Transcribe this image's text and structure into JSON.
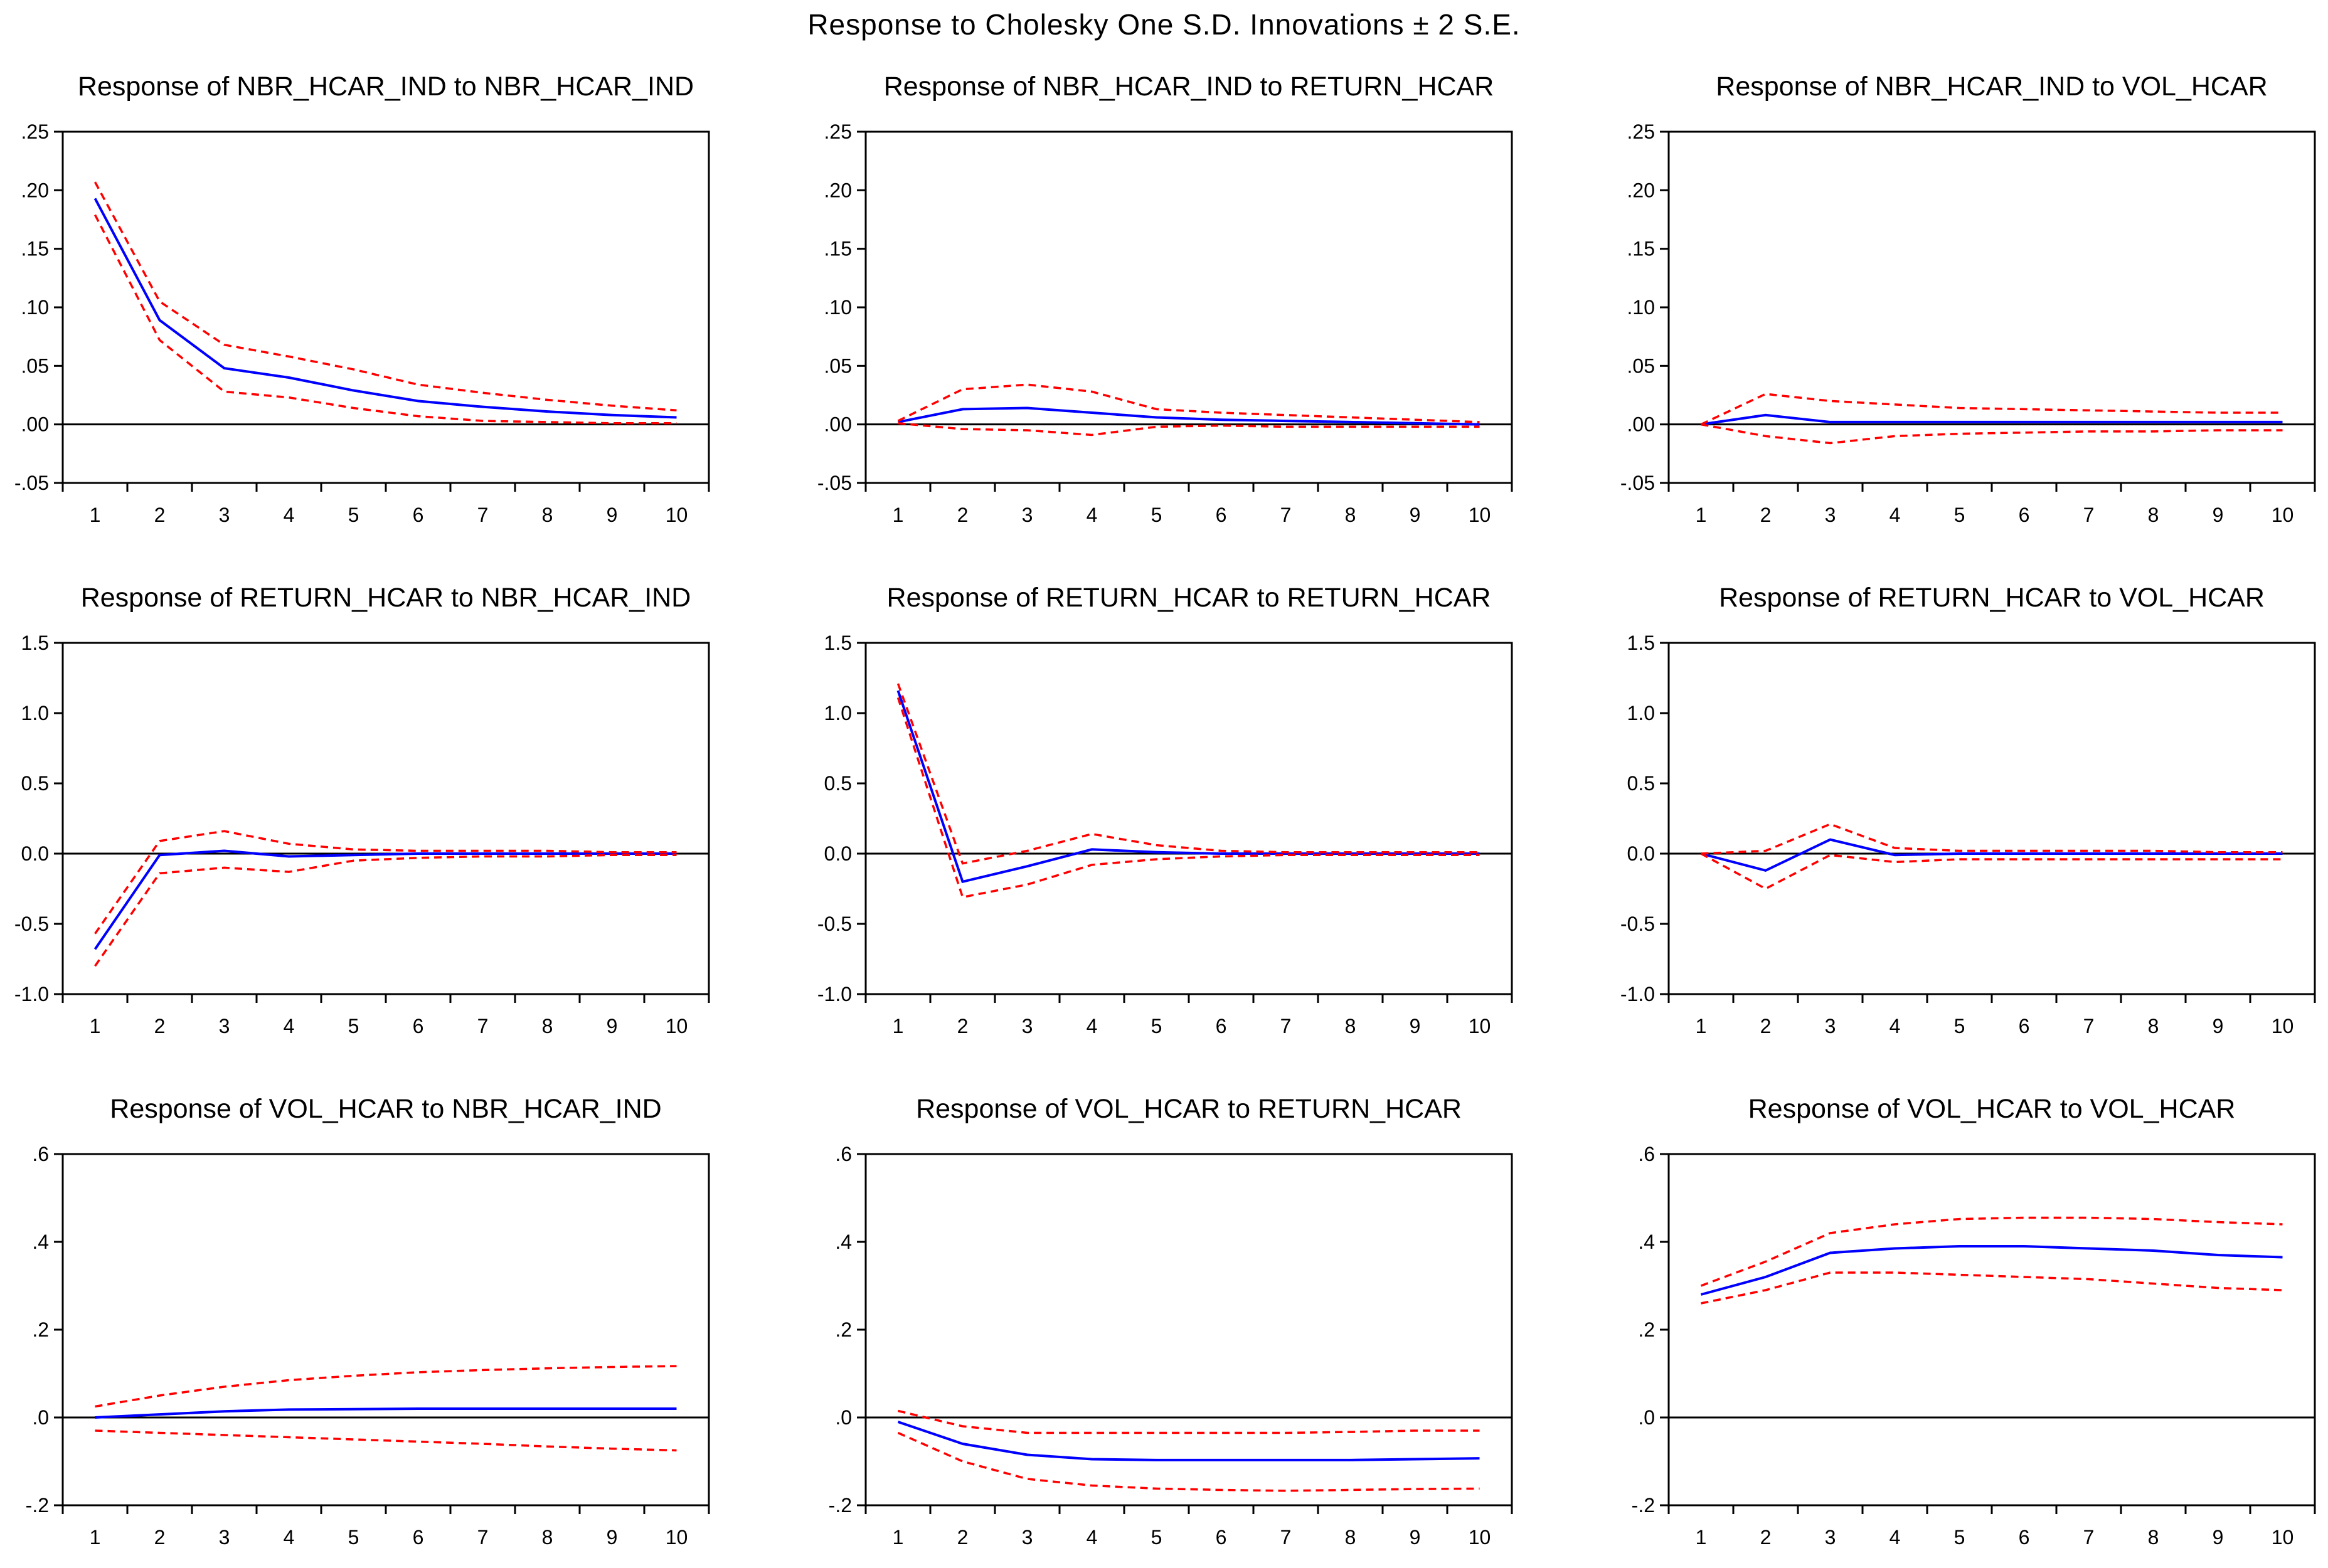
{
  "title": "Response to Cholesky One S.D. Innovations ± 2 S.E.",
  "colors": {
    "response": "#0000ff",
    "band": "#ff0000",
    "axis": "#000000",
    "zero": "#000000"
  },
  "chart_data": [
    {
      "type": "line",
      "title": "Response of NBR_HCAR_IND to NBR_HCAR_IND",
      "x": [
        1,
        2,
        3,
        4,
        5,
        6,
        7,
        8,
        9,
        10
      ],
      "yticks": [
        ".25",
        ".20",
        ".15",
        ".10",
        ".05",
        ".00",
        "-.05"
      ],
      "ylim": [
        -0.05,
        0.25
      ],
      "series": [
        {
          "name": "response",
          "values": [
            0.193,
            0.089,
            0.048,
            0.04,
            0.029,
            0.02,
            0.015,
            0.011,
            0.008,
            0.006
          ]
        },
        {
          "name": "upper",
          "values": [
            0.207,
            0.105,
            0.068,
            0.058,
            0.047,
            0.034,
            0.027,
            0.021,
            0.016,
            0.012
          ]
        },
        {
          "name": "lower",
          "values": [
            0.179,
            0.072,
            0.028,
            0.023,
            0.014,
            0.007,
            0.003,
            0.002,
            0.001,
            0.001
          ]
        }
      ]
    },
    {
      "type": "line",
      "title": "Response of NBR_HCAR_IND to RETURN_HCAR",
      "x": [
        1,
        2,
        3,
        4,
        5,
        6,
        7,
        8,
        9,
        10
      ],
      "yticks": [
        ".25",
        ".20",
        ".15",
        ".10",
        ".05",
        ".00",
        "-.05"
      ],
      "ylim": [
        -0.05,
        0.25
      ],
      "series": [
        {
          "name": "response",
          "values": [
            0.002,
            0.013,
            0.014,
            0.01,
            0.006,
            0.004,
            0.003,
            0.002,
            0.001,
            0.0
          ]
        },
        {
          "name": "upper",
          "values": [
            0.003,
            0.03,
            0.034,
            0.028,
            0.013,
            0.01,
            0.008,
            0.006,
            0.004,
            0.002
          ]
        },
        {
          "name": "lower",
          "values": [
            0.001,
            -0.004,
            -0.005,
            -0.009,
            -0.002,
            -0.001,
            -0.002,
            -0.002,
            -0.002,
            -0.002
          ]
        }
      ]
    },
    {
      "type": "line",
      "title": "Response of NBR_HCAR_IND to VOL_HCAR",
      "x": [
        1,
        2,
        3,
        4,
        5,
        6,
        7,
        8,
        9,
        10
      ],
      "yticks": [
        ".25",
        ".20",
        ".15",
        ".10",
        ".05",
        ".00",
        "-.05"
      ],
      "ylim": [
        -0.05,
        0.25
      ],
      "series": [
        {
          "name": "response",
          "values": [
            0.0,
            0.008,
            0.002,
            0.002,
            0.002,
            0.002,
            0.002,
            0.002,
            0.002,
            0.002
          ]
        },
        {
          "name": "upper",
          "values": [
            0.0,
            0.026,
            0.02,
            0.017,
            0.014,
            0.013,
            0.012,
            0.011,
            0.01,
            0.01
          ]
        },
        {
          "name": "lower",
          "values": [
            0.0,
            -0.01,
            -0.016,
            -0.01,
            -0.008,
            -0.007,
            -0.006,
            -0.006,
            -0.005,
            -0.005
          ]
        }
      ]
    },
    {
      "type": "line",
      "title": "Response of RETURN_HCAR to NBR_HCAR_IND",
      "x": [
        1,
        2,
        3,
        4,
        5,
        6,
        7,
        8,
        9,
        10
      ],
      "yticks": [
        "1.5",
        "1.0",
        "0.5",
        "0.0",
        "-0.5",
        "-1.0"
      ],
      "ylim": [
        -1.0,
        1.5
      ],
      "series": [
        {
          "name": "response",
          "values": [
            -0.68,
            -0.01,
            0.02,
            -0.02,
            -0.01,
            0.0,
            0.0,
            0.0,
            0.0,
            0.0
          ]
        },
        {
          "name": "upper",
          "values": [
            -0.57,
            0.09,
            0.16,
            0.07,
            0.03,
            0.02,
            0.02,
            0.02,
            0.01,
            0.01
          ]
        },
        {
          "name": "lower",
          "values": [
            -0.8,
            -0.14,
            -0.1,
            -0.13,
            -0.05,
            -0.03,
            -0.02,
            -0.02,
            -0.01,
            -0.01
          ]
        }
      ]
    },
    {
      "type": "line",
      "title": "Response of RETURN_HCAR to RETURN_HCAR",
      "x": [
        1,
        2,
        3,
        4,
        5,
        6,
        7,
        8,
        9,
        10
      ],
      "yticks": [
        "1.5",
        "1.0",
        "0.5",
        "0.0",
        "-0.5",
        "-1.0"
      ],
      "ylim": [
        -1.0,
        1.5
      ],
      "series": [
        {
          "name": "response",
          "values": [
            1.16,
            -0.2,
            -0.09,
            0.03,
            0.01,
            0.0,
            0.0,
            0.0,
            0.0,
            0.0
          ]
        },
        {
          "name": "upper",
          "values": [
            1.21,
            -0.07,
            0.02,
            0.14,
            0.06,
            0.02,
            0.01,
            0.01,
            0.01,
            0.01
          ]
        },
        {
          "name": "lower",
          "values": [
            1.11,
            -0.31,
            -0.22,
            -0.08,
            -0.04,
            -0.02,
            -0.01,
            -0.01,
            -0.01,
            -0.01
          ]
        }
      ]
    },
    {
      "type": "line",
      "title": "Response of RETURN_HCAR to VOL_HCAR",
      "x": [
        1,
        2,
        3,
        4,
        5,
        6,
        7,
        8,
        9,
        10
      ],
      "yticks": [
        "1.5",
        "1.0",
        "0.5",
        "0.0",
        "-0.5",
        "-1.0"
      ],
      "ylim": [
        -1.0,
        1.5
      ],
      "series": [
        {
          "name": "response",
          "values": [
            0.0,
            -0.12,
            0.1,
            -0.01,
            0.0,
            0.0,
            0.0,
            0.0,
            0.0,
            0.0
          ]
        },
        {
          "name": "upper",
          "values": [
            0.0,
            0.02,
            0.21,
            0.04,
            0.02,
            0.02,
            0.02,
            0.02,
            0.01,
            0.01
          ]
        },
        {
          "name": "lower",
          "values": [
            0.0,
            -0.25,
            -0.01,
            -0.06,
            -0.04,
            -0.04,
            -0.04,
            -0.04,
            -0.04,
            -0.04
          ]
        }
      ]
    },
    {
      "type": "line",
      "title": "Response of VOL_HCAR to NBR_HCAR_IND",
      "x": [
        1,
        2,
        3,
        4,
        5,
        6,
        7,
        8,
        9,
        10
      ],
      "yticks": [
        ".6",
        ".4",
        ".2",
        ".0",
        "-.2"
      ],
      "ylim": [
        -0.2,
        0.6
      ],
      "series": [
        {
          "name": "response",
          "values": [
            0.0,
            0.007,
            0.014,
            0.018,
            0.019,
            0.02,
            0.02,
            0.02,
            0.02,
            0.02
          ]
        },
        {
          "name": "upper",
          "values": [
            0.025,
            0.05,
            0.07,
            0.085,
            0.095,
            0.103,
            0.108,
            0.112,
            0.115,
            0.117
          ]
        },
        {
          "name": "lower",
          "values": [
            -0.03,
            -0.035,
            -0.04,
            -0.045,
            -0.05,
            -0.055,
            -0.06,
            -0.066,
            -0.071,
            -0.075
          ]
        }
      ]
    },
    {
      "type": "line",
      "title": "Response of VOL_HCAR to RETURN_HCAR",
      "x": [
        1,
        2,
        3,
        4,
        5,
        6,
        7,
        8,
        9,
        10
      ],
      "yticks": [
        ".6",
        ".4",
        ".2",
        ".0",
        "-.2"
      ],
      "ylim": [
        -0.2,
        0.6
      ],
      "series": [
        {
          "name": "response",
          "values": [
            -0.01,
            -0.06,
            -0.085,
            -0.095,
            -0.097,
            -0.097,
            -0.097,
            -0.097,
            -0.095,
            -0.093
          ]
        },
        {
          "name": "upper",
          "values": [
            0.015,
            -0.02,
            -0.035,
            -0.035,
            -0.035,
            -0.035,
            -0.035,
            -0.033,
            -0.03,
            -0.03
          ]
        },
        {
          "name": "lower",
          "values": [
            -0.035,
            -0.1,
            -0.14,
            -0.155,
            -0.162,
            -0.165,
            -0.167,
            -0.165,
            -0.163,
            -0.162
          ]
        }
      ]
    },
    {
      "type": "line",
      "title": "Response of VOL_HCAR to VOL_HCAR",
      "x": [
        1,
        2,
        3,
        4,
        5,
        6,
        7,
        8,
        9,
        10
      ],
      "yticks": [
        ".6",
        ".4",
        ".2",
        ".0",
        "-.2"
      ],
      "ylim": [
        -0.2,
        0.6
      ],
      "series": [
        {
          "name": "response",
          "values": [
            0.28,
            0.32,
            0.375,
            0.385,
            0.39,
            0.39,
            0.385,
            0.38,
            0.37,
            0.365
          ]
        },
        {
          "name": "upper",
          "values": [
            0.3,
            0.355,
            0.42,
            0.44,
            0.452,
            0.455,
            0.455,
            0.452,
            0.445,
            0.44
          ]
        },
        {
          "name": "lower",
          "values": [
            0.26,
            0.29,
            0.33,
            0.33,
            0.325,
            0.32,
            0.315,
            0.305,
            0.295,
            0.29
          ]
        }
      ]
    }
  ]
}
